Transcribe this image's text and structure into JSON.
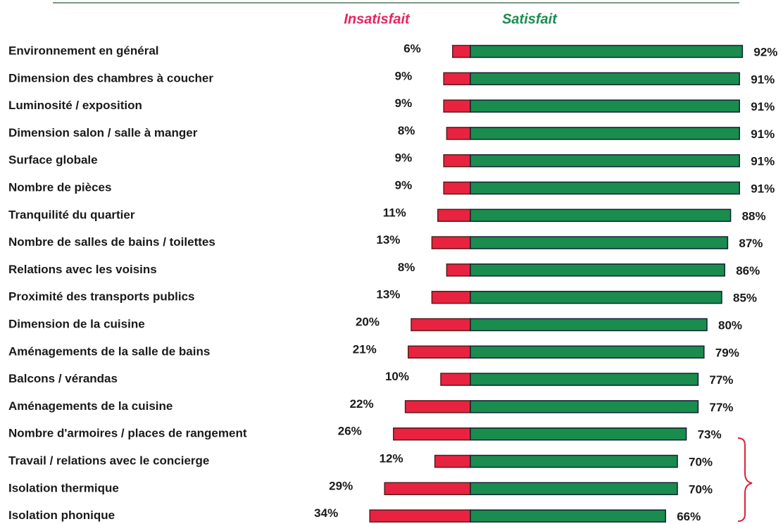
{
  "chart_data": {
    "type": "diverging_bar",
    "categories": [
      "Environnement en général",
      "Dimension des chambres à coucher",
      "Luminosité / exposition",
      "Dimension salon / salle à manger",
      "Surface globale",
      "Nombre de pièces",
      "Tranquilité du quartier",
      "Nombre de salles de bains / toilettes",
      "Relations avec les voisins",
      "Proximité des transports publics",
      "Dimension de la cuisine",
      "Aménagements de la salle de bains",
      "Balcons / vérandas",
      "Aménagements de la cuisine",
      "Nombre d'armoires / places de rangement",
      "Travail / relations avec le concierge",
      "Isolation thermique",
      "Isolation phonique"
    ],
    "series": [
      {
        "name": "Insatisfait",
        "color": "#e8233f",
        "values": [
          6,
          9,
          9,
          8,
          9,
          9,
          11,
          13,
          8,
          13,
          20,
          21,
          10,
          22,
          26,
          12,
          29,
          34
        ],
        "value_labels": [
          "6%",
          "9%",
          "9%",
          "8%",
          "9%",
          "9%",
          "11%",
          "13%",
          "8%",
          "13%",
          "20%",
          "21%",
          "10%",
          "22%",
          "26%",
          "12%",
          "29%",
          "34%"
        ]
      },
      {
        "name": "Satisfait",
        "color": "#1a8c4e",
        "values": [
          92,
          91,
          91,
          91,
          91,
          91,
          88,
          87,
          86,
          85,
          80,
          79,
          77,
          77,
          73,
          70,
          70,
          66
        ],
        "value_labels": [
          "92%",
          "91%",
          "91%",
          "91%",
          "91%",
          "91%",
          "88%",
          "87%",
          "86%",
          "85%",
          "80%",
          "79%",
          "77%",
          "77%",
          "73%",
          "70%",
          "70%",
          "66%"
        ]
      }
    ]
  }
}
